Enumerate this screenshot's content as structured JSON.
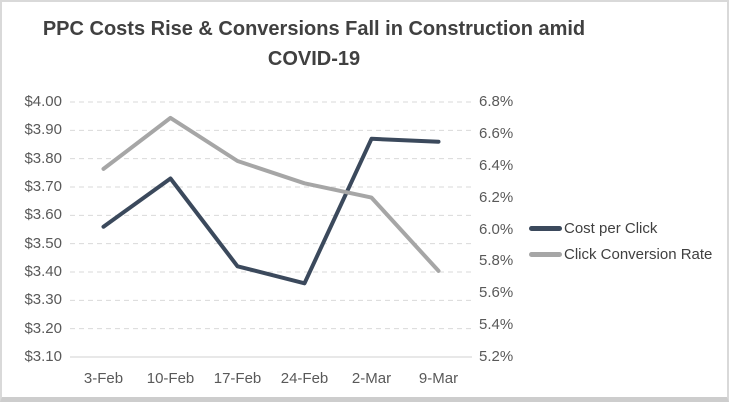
{
  "title": {
    "text": "PPC Costs Rise & Conversions Fall in Construction amid COVID-19"
  },
  "colors": {
    "cost_line": "#3b495c",
    "conversion_line": "#a6a6a6",
    "gridline": "#d9d9d9",
    "axis_line": "#d0d0d0",
    "tick_text": "#595959",
    "title_text": "#404040"
  },
  "chart_data": {
    "type": "line",
    "title": "PPC Costs Rise & Conversions Fall in Construction amid COVID-19",
    "categories": [
      "3-Feb",
      "10-Feb",
      "17-Feb",
      "24-Feb",
      "2-Mar",
      "9-Mar"
    ],
    "series": [
      {
        "name": "Cost per Click",
        "axis": "left",
        "color": "#3b495c",
        "values": [
          3.56,
          3.73,
          3.42,
          3.36,
          3.87,
          3.86
        ]
      },
      {
        "name": "Click Conversion Rate",
        "axis": "right",
        "color": "#a6a6a6",
        "values": [
          6.38,
          6.7,
          6.43,
          6.29,
          6.2,
          5.74
        ]
      }
    ],
    "left_axis": {
      "min": 3.1,
      "max": 4.0,
      "ticks": [
        "$4.00",
        "$3.90",
        "$3.80",
        "$3.70",
        "$3.60",
        "$3.50",
        "$3.40",
        "$3.30",
        "$3.20",
        "$3.10"
      ]
    },
    "right_axis": {
      "min": 5.2,
      "max": 6.8,
      "ticks": [
        "6.8%",
        "6.6%",
        "6.4%",
        "6.2%",
        "6.0%",
        "5.8%",
        "5.6%",
        "5.4%",
        "5.2%"
      ]
    },
    "grid": "horizontal-dashed",
    "legend_position": "right",
    "xlabel": "",
    "ylabel": ""
  }
}
